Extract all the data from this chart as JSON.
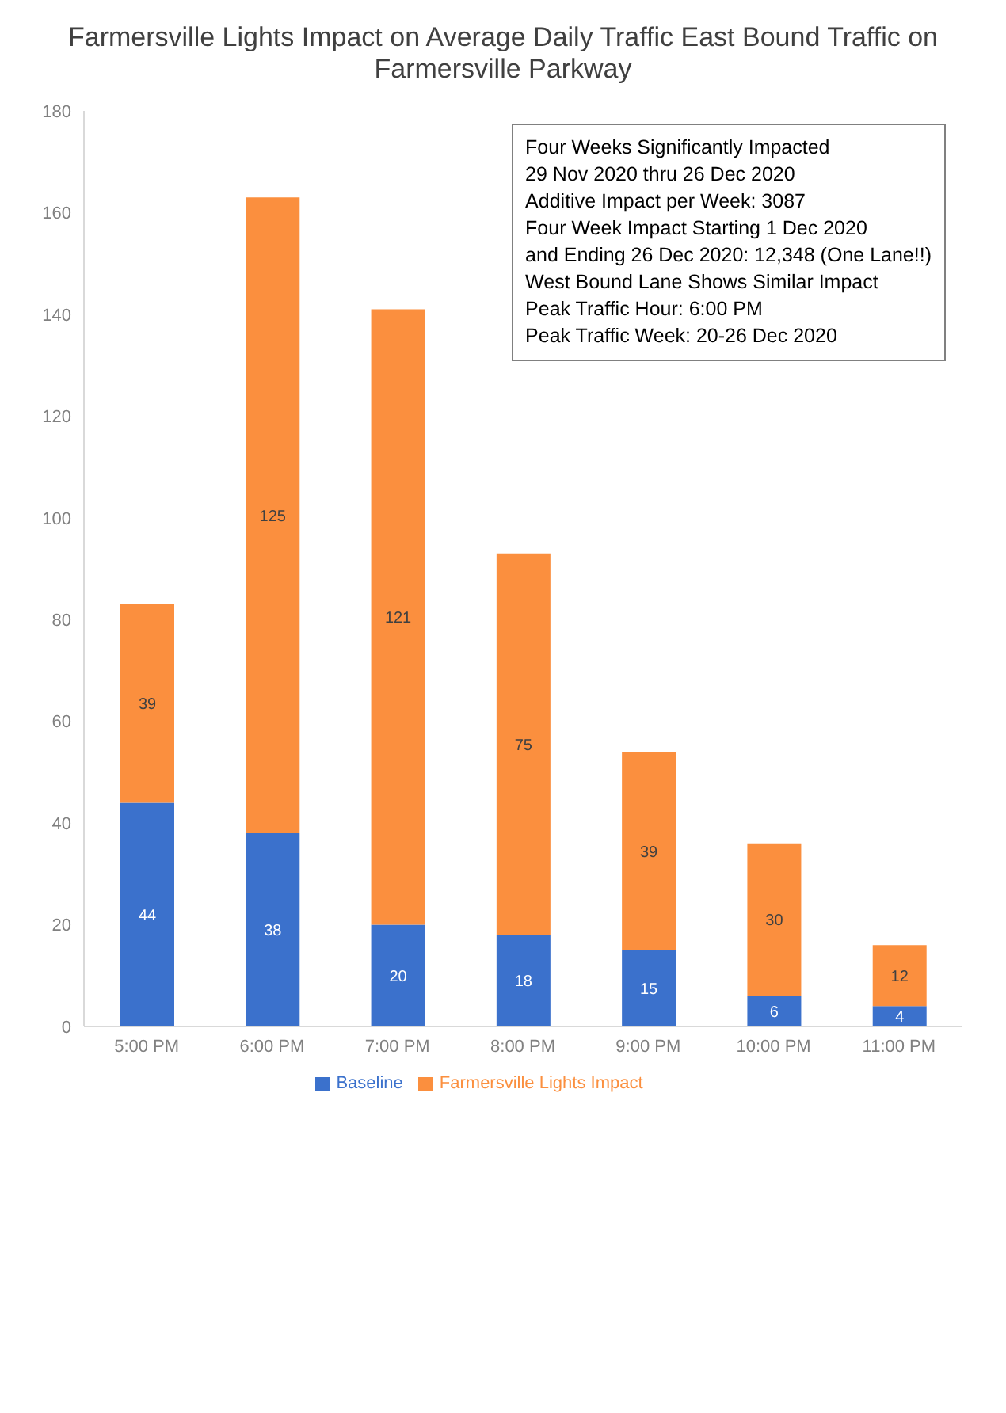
{
  "chart_data": {
    "type": "bar",
    "title": "Farmersville Lights Impact on Average Daily Traffic East Bound Traffic on Farmersville Parkway",
    "categories": [
      "5:00 PM",
      "6:00 PM",
      "7:00 PM",
      "8:00 PM",
      "9:00 PM",
      "10:00 PM",
      "11:00 PM"
    ],
    "series": [
      {
        "name": "Baseline",
        "color": "#3b71cc",
        "values": [
          44,
          38,
          20,
          18,
          15,
          6,
          4
        ]
      },
      {
        "name": "Farmersville Lights Impact",
        "color": "#fb8f3e",
        "values": [
          39,
          125,
          121,
          75,
          39,
          30,
          12
        ]
      }
    ],
    "stacked": true,
    "data_labels": true,
    "ylim": [
      0,
      180
    ],
    "yticks": [
      0,
      20,
      40,
      60,
      80,
      100,
      120,
      140,
      160,
      180
    ],
    "grid": false,
    "legend": "bottom",
    "annotations": [
      "Four Weeks Significantly Impacted",
      "29 Nov 2020 thru 26 Dec 2020",
      "Additive Impact per Week: 3087",
      "Four Week Impact Starting 1 Dec 2020",
      "and Ending 26 Dec 2020: 12,348 (One Lane!!)",
      "West Bound Lane Shows Similar Impact",
      "Peak Traffic Hour: 6:00 PM",
      "Peak Traffic Week: 20-26 Dec 2020"
    ]
  }
}
